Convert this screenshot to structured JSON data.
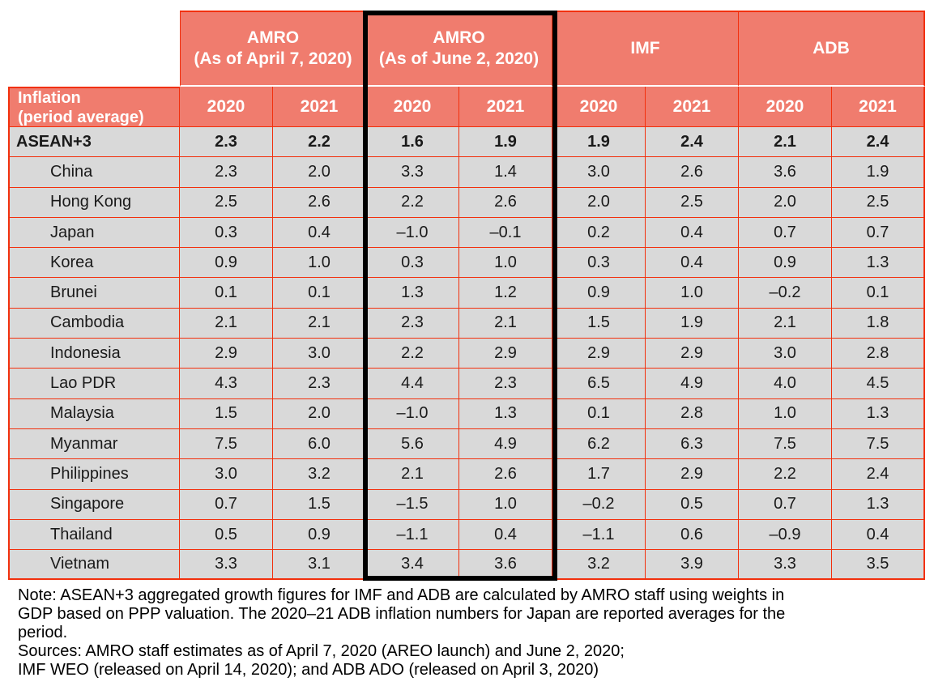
{
  "chart_data": {
    "type": "table",
    "title": "Inflation (period average)",
    "corner_header_lines": [
      "Inflation",
      "(period average)"
    ],
    "org_headers": [
      {
        "label": "AMRO",
        "sublabel": "(As of April 7, 2020)",
        "highlighted": false
      },
      {
        "label": "AMRO",
        "sublabel": "(As of June 2, 2020)",
        "highlighted": true
      },
      {
        "label": "IMF",
        "sublabel": "",
        "highlighted": false
      },
      {
        "label": "ADB",
        "sublabel": "",
        "highlighted": false
      }
    ],
    "year_headers": [
      "2020",
      "2021",
      "2020",
      "2021",
      "2020",
      "2021",
      "2020",
      "2021"
    ],
    "rows": [
      {
        "label": "ASEAN+3",
        "bold": true,
        "values": [
          "2.3",
          "2.2",
          "1.6",
          "1.9",
          "1.9",
          "2.4",
          "2.1",
          "2.4"
        ]
      },
      {
        "label": "China",
        "bold": false,
        "values": [
          "2.3",
          "2.0",
          "3.3",
          "1.4",
          "3.0",
          "2.6",
          "3.6",
          "1.9"
        ]
      },
      {
        "label": "Hong Kong",
        "bold": false,
        "values": [
          "2.5",
          "2.6",
          "2.2",
          "2.6",
          "2.0",
          "2.5",
          "2.0",
          "2.5"
        ]
      },
      {
        "label": "Japan",
        "bold": false,
        "values": [
          "0.3",
          "0.4",
          "–1.0",
          "–0.1",
          "0.2",
          "0.4",
          "0.7",
          "0.7"
        ]
      },
      {
        "label": "Korea",
        "bold": false,
        "values": [
          "0.9",
          "1.0",
          "0.3",
          "1.0",
          "0.3",
          "0.4",
          "0.9",
          "1.3"
        ]
      },
      {
        "label": "Brunei",
        "bold": false,
        "values": [
          "0.1",
          "0.1",
          "1.3",
          "1.2",
          "0.9",
          "1.0",
          "–0.2",
          "0.1"
        ]
      },
      {
        "label": "Cambodia",
        "bold": false,
        "values": [
          "2.1",
          "2.1",
          "2.3",
          "2.1",
          "1.5",
          "1.9",
          "2.1",
          "1.8"
        ]
      },
      {
        "label": "Indonesia",
        "bold": false,
        "values": [
          "2.9",
          "3.0",
          "2.2",
          "2.9",
          "2.9",
          "2.9",
          "3.0",
          "2.8"
        ]
      },
      {
        "label": "Lao PDR",
        "bold": false,
        "values": [
          "4.3",
          "2.3",
          "4.4",
          "2.3",
          "6.5",
          "4.9",
          "4.0",
          "4.5"
        ]
      },
      {
        "label": "Malaysia",
        "bold": false,
        "values": [
          "1.5",
          "2.0",
          "–1.0",
          "1.3",
          "0.1",
          "2.8",
          "1.0",
          "1.3"
        ]
      },
      {
        "label": "Myanmar",
        "bold": false,
        "values": [
          "7.5",
          "6.0",
          "5.6",
          "4.9",
          "6.2",
          "6.3",
          "7.5",
          "7.5"
        ]
      },
      {
        "label": "Philippines",
        "bold": false,
        "values": [
          "3.0",
          "3.2",
          "2.1",
          "2.6",
          "1.7",
          "2.9",
          "2.2",
          "2.4"
        ]
      },
      {
        "label": "Singapore",
        "bold": false,
        "values": [
          "0.7",
          "1.5",
          "–1.5",
          "1.0",
          "–0.2",
          "0.5",
          "0.7",
          "1.3"
        ]
      },
      {
        "label": "Thailand",
        "bold": false,
        "values": [
          "0.5",
          "0.9",
          "–1.1",
          "0.4",
          "–1.1",
          "0.6",
          "–0.9",
          "0.4"
        ]
      },
      {
        "label": "Vietnam",
        "bold": false,
        "values": [
          "3.3",
          "3.1",
          "3.4",
          "3.6",
          "3.2",
          "3.9",
          "3.3",
          "3.5"
        ]
      }
    ],
    "layout_hints": {
      "highlighted_block": "AMRO (As of June 2, 2020) columns outlined in black",
      "header_color": "#F07C6E",
      "cell_color": "#D9D9D9",
      "grid_color": "#F2300D",
      "highlight_border_color": "#000000"
    }
  },
  "notes": {
    "lines": [
      "Note: ASEAN+3 aggregated growth figures for IMF and ADB are calculated by AMRO staff using weights in",
      "GDP based on PPP valuation. The 2020–21 ADB inflation numbers for Japan are reported averages for the",
      "period.",
      "Sources: AMRO staff estimates as of April 7, 2020 (AREO launch) and June 2, 2020;",
      "IMF WEO (released on April 14, 2020); and ADB ADO (released on April 3, 2020)"
    ]
  }
}
